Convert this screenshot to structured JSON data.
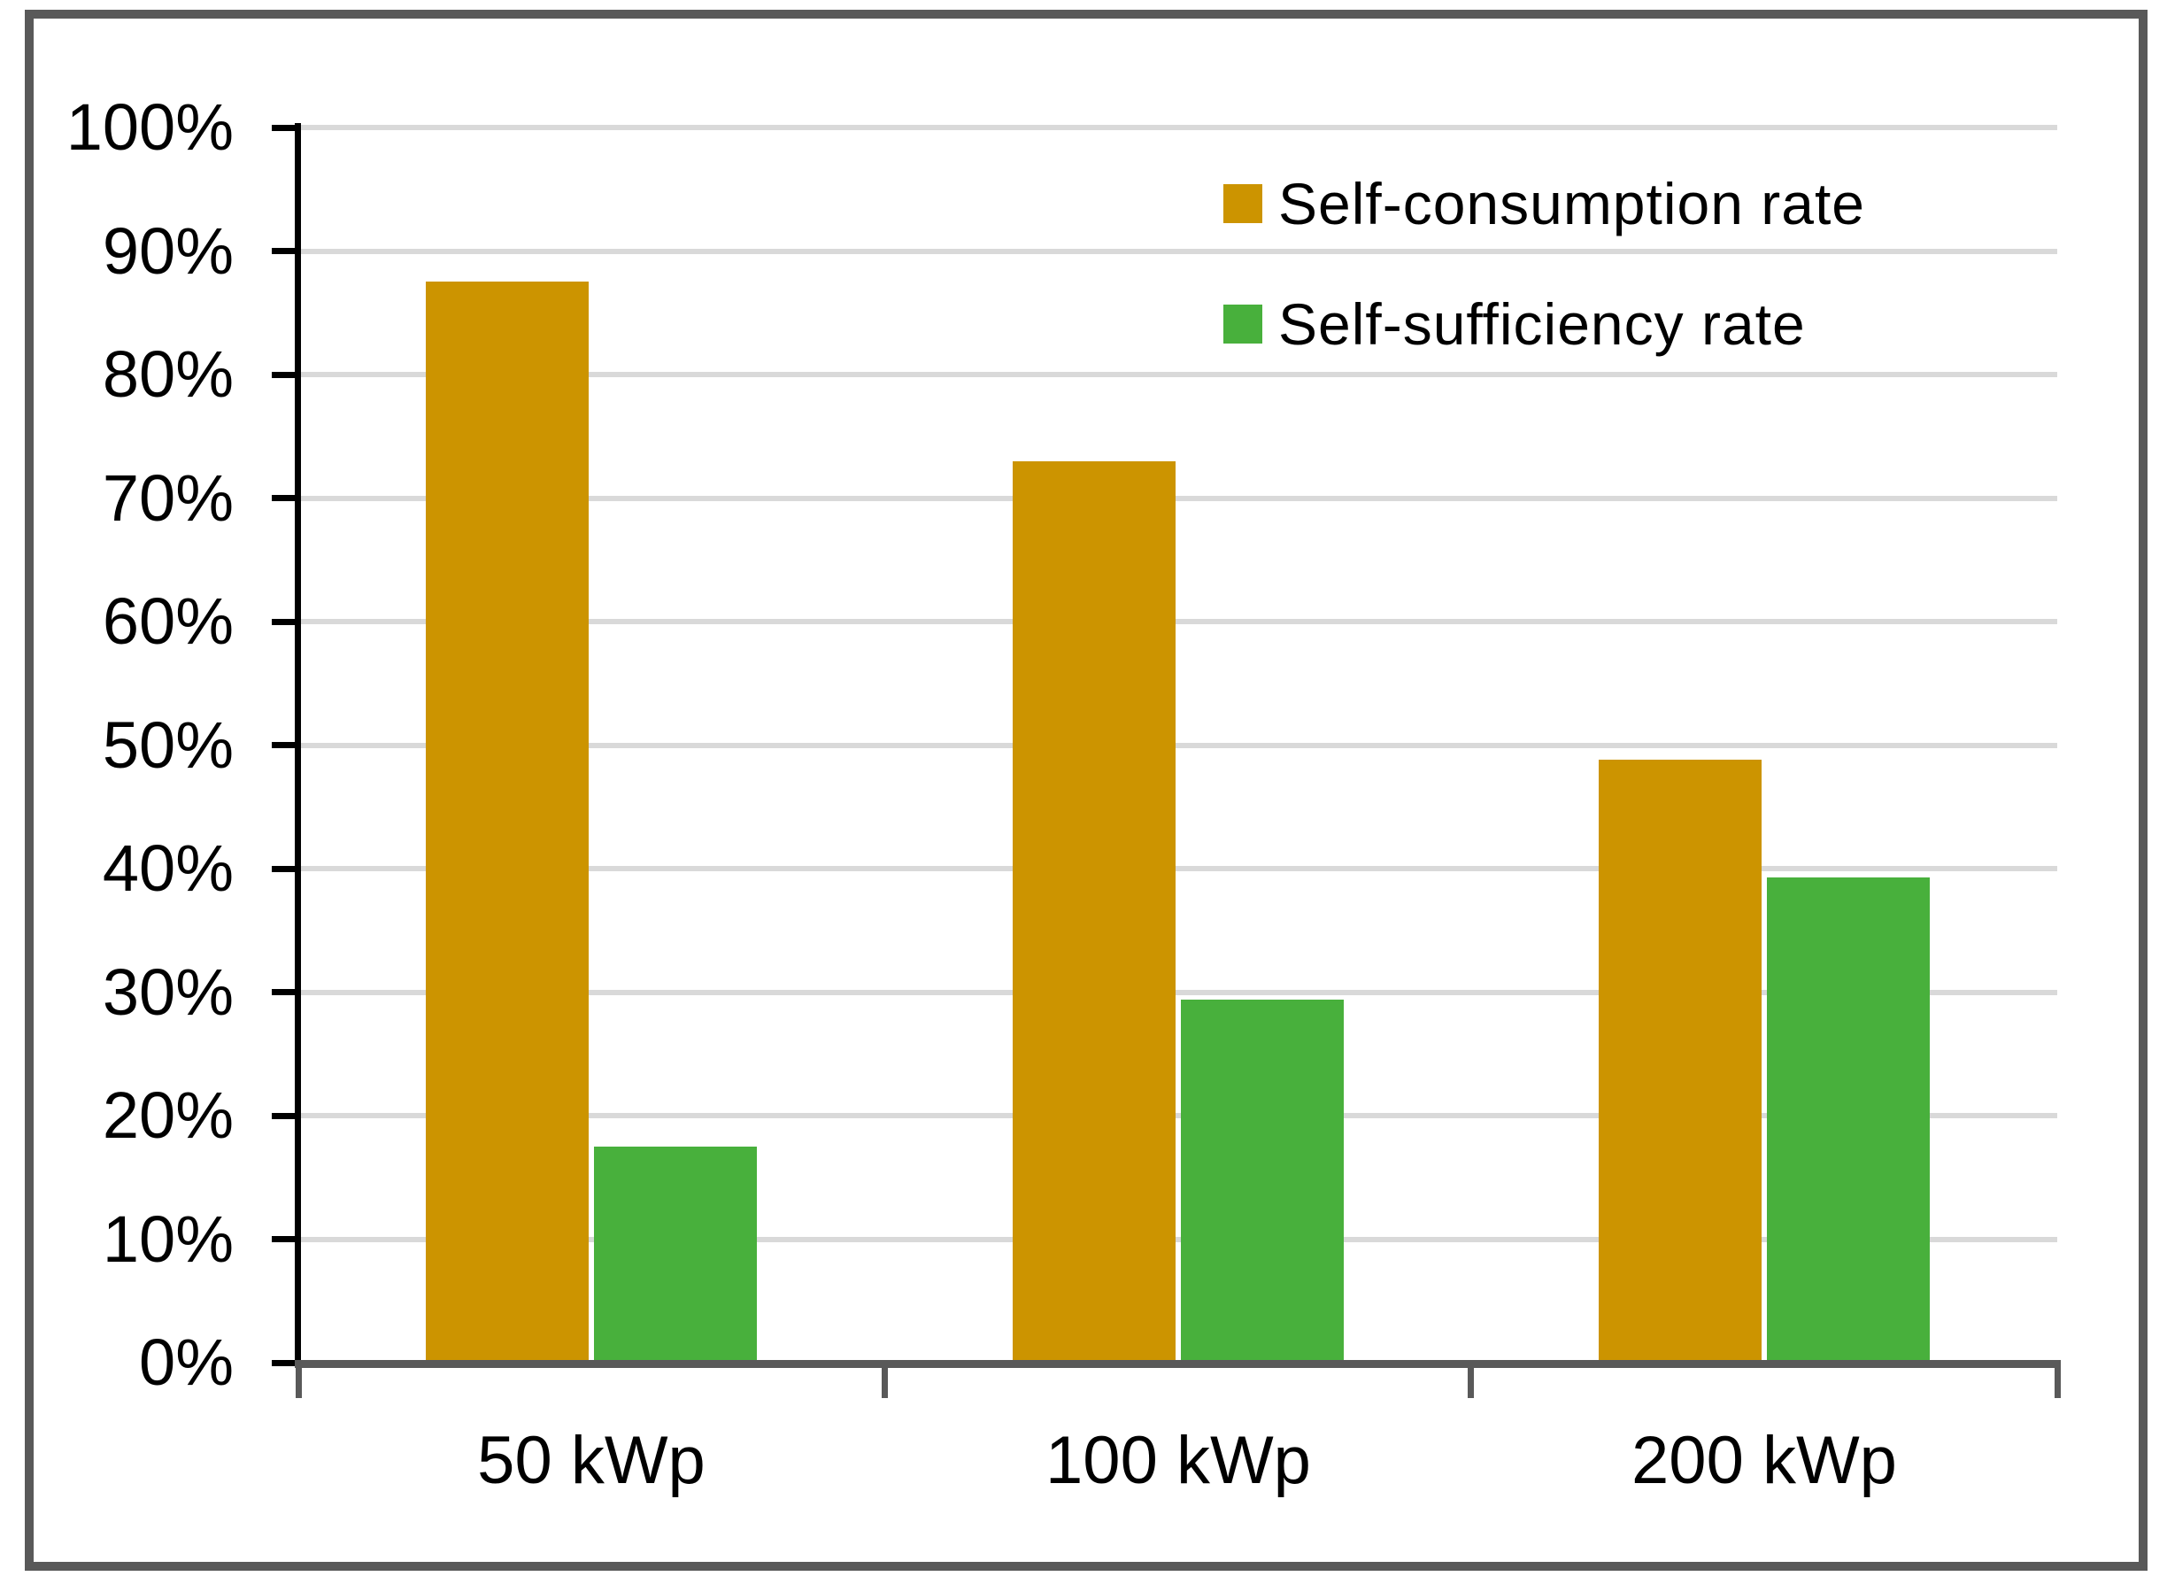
{
  "window": {
    "background": "#FFFFFF",
    "frame_border_color": "#595959"
  },
  "chart_data": {
    "type": "bar",
    "title": "",
    "categories": [
      "50 kWp",
      "100 kWp",
      "200 kWp"
    ],
    "series": [
      {
        "name": "Self-consumption rate",
        "color": "#CC9400",
        "values": [
          87.5,
          73.0,
          48.8
        ]
      },
      {
        "name": "Self-sufficiency rate",
        "color": "#48B03C",
        "values": [
          17.5,
          29.4,
          39.3
        ]
      }
    ],
    "value_format": "percent",
    "ylim": [
      0,
      100
    ],
    "ytick_step": 10,
    "ytick_labels": [
      "0%",
      "10%",
      "20%",
      "30%",
      "40%",
      "50%",
      "60%",
      "70%",
      "80%",
      "90%",
      "100%"
    ],
    "grid": true,
    "gridline_color": "#D9D9D9",
    "y_axis_color": "#000000",
    "x_axis_color": "#595959",
    "label_color": "#000000",
    "legend_position": "top-right"
  }
}
